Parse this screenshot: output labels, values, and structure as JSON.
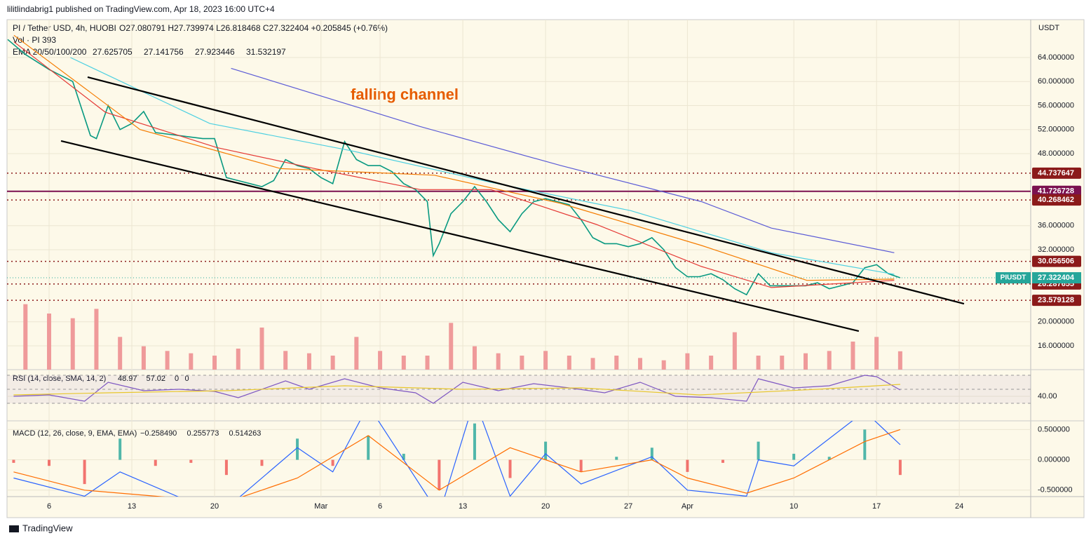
{
  "header": {
    "publisher": "lilitlindabrig1 published on TradingView.com, Apr 18, 2023 16:00 UTC+4",
    "symbol": "PI / Tether USD, 4h, HUOBI",
    "ohlc": "O27.080791 H27.739974 L26.818468 C27.322404 +0.205845 (+0.76%)",
    "volume_legend": "Vol · PI 393",
    "ema_legend": "EMA 20/50/100/200",
    "ema_values": [
      "27.625705",
      "27.141756",
      "27.923446",
      "31.532197"
    ]
  },
  "footer": {
    "brand": "TradingView"
  },
  "chart_data": [
    {
      "type": "line",
      "annotation": "falling channel",
      "unit": "USDT",
      "xlim": [
        1.44,
        88.04
      ],
      "ylim": [
        12.03,
        70.3
      ],
      "xticks": [
        {
          "value": 5,
          "label": "6"
        },
        {
          "value": 12,
          "label": "13"
        },
        {
          "value": 19,
          "label": "20"
        },
        {
          "value": 28,
          "label": "Mar"
        },
        {
          "value": 33,
          "label": "6"
        },
        {
          "value": 40,
          "label": "13"
        },
        {
          "value": 47,
          "label": "20"
        },
        {
          "value": 54,
          "label": "27"
        },
        {
          "value": 59,
          "label": "Apr"
        },
        {
          "value": 68,
          "label": "10"
        },
        {
          "value": 75,
          "label": "17"
        },
        {
          "value": 82,
          "label": "24"
        }
      ],
      "yticks": [
        {
          "value": 64,
          "label": "64.000000"
        },
        {
          "value": 60,
          "label": "60.000000"
        },
        {
          "value": 56,
          "label": "56.000000"
        },
        {
          "value": 52,
          "label": "52.000000"
        },
        {
          "value": 48,
          "label": "48.000000"
        },
        {
          "value": 36,
          "label": "36.000000"
        },
        {
          "value": 32,
          "label": "32.000000"
        },
        {
          "value": 20,
          "label": "20.000000"
        },
        {
          "value": 16,
          "label": "16.000000"
        }
      ],
      "series": [
        {
          "color": "#089981",
          "x": [
            1.5,
            3,
            5,
            7,
            8.5,
            9,
            10,
            11,
            12,
            13,
            14,
            16,
            18,
            19,
            20,
            21,
            22,
            23,
            24,
            25,
            26,
            27,
            28,
            29,
            30,
            31,
            32,
            33,
            34,
            35,
            36,
            37,
            37.5,
            38,
            39,
            40,
            41,
            42,
            43,
            44,
            45,
            46,
            47,
            48,
            49,
            50,
            51,
            52,
            53,
            54,
            55,
            56,
            57,
            58,
            59,
            60,
            61,
            62,
            63,
            64,
            65,
            66,
            67,
            68,
            69,
            70,
            71,
            72,
            73,
            74,
            75,
            76,
            77
          ],
          "values": [
            67,
            64.5,
            62,
            60,
            51,
            50.5,
            56,
            52,
            53,
            55,
            51.5,
            51,
            50.5,
            50.5,
            44,
            43.5,
            43,
            42.5,
            43.5,
            47,
            46,
            45.5,
            44,
            43,
            50,
            47,
            46,
            46,
            45,
            43,
            42,
            40,
            31,
            33,
            38,
            40,
            42.5,
            40,
            37,
            35,
            38,
            40,
            40.5,
            40,
            39.5,
            37,
            34,
            33,
            33,
            32.5,
            33,
            34,
            32,
            29,
            27.5,
            27.5,
            28,
            27,
            25.5,
            24.5,
            28,
            26,
            26,
            26,
            26,
            26.5,
            25.5,
            26,
            26.5,
            29,
            29.5,
            28,
            27.322404
          ]
        },
        {
          "color": "#e53935",
          "x": [
            2.03,
            9.75,
            19.2,
            27.5,
            36.4,
            42.4,
            51.3,
            60.2,
            66.1,
            76.5
          ],
          "values": [
            66.6,
            54.9,
            49.0,
            45.5,
            42.0,
            42.0,
            36.2,
            29.2,
            25.7,
            26.9
          ]
        },
        {
          "color": "#f57c00",
          "x": [
            2.03,
            12.7,
            24.6,
            37.6,
            48.3,
            60.2,
            69.1,
            76.5
          ],
          "values": [
            67.7,
            52,
            45.5,
            44.4,
            39.7,
            32.7,
            26.9,
            27.1
          ]
        },
        {
          "color": "#4dd0e1",
          "x": [
            6.8,
            18.6,
            30.5,
            42.4,
            54.2,
            66.1,
            76.5
          ],
          "values": [
            64,
            53,
            48.5,
            43.2,
            38.5,
            31.5,
            27.9
          ]
        },
        {
          "color": "#5b5bd6",
          "x": [
            20.4,
            36.4,
            48.3,
            60.2,
            66.1,
            76.5
          ],
          "values": [
            62.2,
            52.5,
            46,
            40,
            35.6,
            31.5
          ]
        }
      ],
      "trendlines": [
        {
          "color": "#000000",
          "x": [
            8.26,
            82.4
          ],
          "y": [
            60.73,
            23.0
          ]
        },
        {
          "color": "#000000",
          "x": [
            6.01,
            73.5
          ],
          "y": [
            50.1,
            18.45
          ]
        }
      ],
      "levels": [
        {
          "value": 44.737647,
          "color": "#8b1a1a",
          "style": "dotted"
        },
        {
          "value": 41.726728,
          "color": "#7b1150",
          "style": "solid"
        },
        {
          "value": 40.268462,
          "color": "#8b1a1a",
          "style": "dotted"
        },
        {
          "value": 30.056506,
          "color": "#8b1a1a",
          "style": "dotted"
        },
        {
          "value": 26.287655,
          "color": "#8b1a1a",
          "style": "dotted"
        },
        {
          "value": 23.579128,
          "color": "#8b1a1a",
          "style": "dotted"
        }
      ],
      "last": {
        "name": "PIUSDT",
        "value": 27.322404,
        "color": "#26a69a"
      },
      "volume": {
        "color": "#ef9a9a",
        "vlim": [
          0,
          1500
        ],
        "x": [
          3,
          5,
          7,
          9,
          11,
          13,
          15,
          17,
          19,
          21,
          23,
          25,
          27,
          29,
          31,
          33,
          35,
          37,
          39,
          41,
          43,
          45,
          47,
          49,
          51,
          53,
          55,
          57,
          59,
          61,
          63,
          65,
          67,
          69,
          71,
          73,
          75,
          77
        ],
        "values": [
          1400,
          1200,
          1100,
          1300,
          700,
          500,
          400,
          350,
          300,
          450,
          900,
          400,
          350,
          300,
          700,
          400,
          300,
          300,
          1000,
          500,
          350,
          300,
          400,
          300,
          250,
          300,
          250,
          200,
          350,
          300,
          800,
          300,
          300,
          350,
          400,
          600,
          700,
          393
        ]
      }
    },
    {
      "type": "line",
      "legend": "RSI (14, close, SMA, 14, 2)",
      "legend_values": [
        "48.97",
        "57.02",
        "0",
        "0"
      ],
      "ylim": [
        8,
        75
      ],
      "yticks": [
        {
          "value": 40,
          "label": "40.00"
        }
      ],
      "bands": [
        70,
        50,
        30
      ],
      "series": [
        {
          "color": "#7e57c2",
          "x": [
            2,
            5,
            8,
            10,
            13,
            16,
            19,
            21,
            25,
            27,
            30,
            33,
            36,
            37.5,
            40,
            43,
            46,
            49,
            52,
            55,
            58,
            61,
            64,
            65,
            68,
            71,
            74,
            75,
            77
          ],
          "values": [
            40,
            42,
            33,
            60,
            48,
            50,
            47,
            38,
            62,
            50,
            65,
            52,
            45,
            30,
            60,
            48,
            58,
            52,
            45,
            60,
            40,
            38,
            33,
            65,
            52,
            55,
            70,
            68,
            48.97
          ]
        },
        {
          "color": "#e8c72c",
          "x": [
            2,
            10,
            20,
            30,
            40,
            50,
            60,
            70,
            77
          ],
          "values": [
            42,
            45,
            48,
            55,
            50,
            52,
            42,
            50,
            57.02
          ]
        }
      ]
    },
    {
      "type": "line",
      "legend": "MACD (12, 26, close, 9, EMA, EMA)",
      "legend_values": [
        "−0.258490",
        "0.255773",
        "0.514263"
      ],
      "ylim": [
        -0.607,
        0.643
      ],
      "yticks": [
        {
          "value": 0.5,
          "label": "0.500000"
        },
        {
          "value": 0,
          "label": "0.000000"
        },
        {
          "value": -0.5,
          "label": "-0.500000"
        }
      ],
      "histogram": {
        "colors": [
          "#26a69a",
          "#ef5350"
        ],
        "x": [
          2,
          5,
          8,
          11,
          14,
          17,
          20,
          23,
          26,
          29,
          32,
          35,
          38,
          41,
          44,
          47,
          50,
          53,
          56,
          59,
          62,
          65,
          68,
          71,
          74,
          77
        ],
        "values": [
          -0.05,
          -0.1,
          -0.4,
          0.35,
          -0.1,
          -0.05,
          -0.25,
          -0.1,
          0.35,
          -0.1,
          0.4,
          0.1,
          -0.5,
          0.6,
          -0.3,
          0.3,
          -0.2,
          0.05,
          0.2,
          -0.2,
          -0.05,
          0.3,
          0.1,
          0.05,
          0.5,
          -0.25
        ]
      },
      "series": [
        {
          "color": "#2962ff",
          "x": [
            2,
            8,
            11,
            17,
            20,
            26,
            29,
            32,
            38,
            41,
            44,
            47,
            50,
            56,
            59,
            64,
            65,
            68,
            74,
            77
          ],
          "values": [
            -0.3,
            -0.6,
            -0.2,
            -0.7,
            -0.8,
            0.2,
            -0.2,
            0.9,
            -0.9,
            1.0,
            -0.6,
            0.1,
            -0.4,
            0.05,
            -0.5,
            -0.6,
            0.0,
            -0.1,
            0.8,
            0.25
          ]
        },
        {
          "color": "#ff6d00",
          "x": [
            2,
            8,
            14,
            20,
            26,
            32,
            38,
            44,
            50,
            56,
            59,
            64,
            68,
            74,
            77
          ],
          "values": [
            -0.2,
            -0.5,
            -0.6,
            -0.7,
            -0.3,
            0.4,
            -0.5,
            0.2,
            -0.2,
            0.0,
            -0.3,
            -0.55,
            -0.3,
            0.3,
            0.5
          ]
        }
      ]
    }
  ]
}
